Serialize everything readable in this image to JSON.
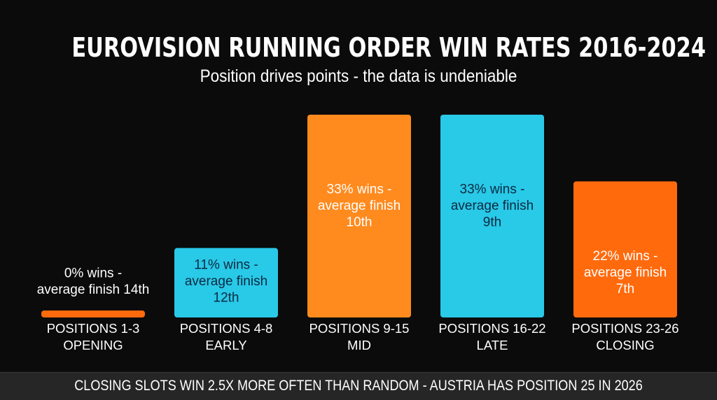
{
  "header": {
    "title": "EUROVISION RUNNING ORDER WIN RATES 2016-2024",
    "subtitle": "Position drives points - the data is undeniable"
  },
  "footer": {
    "text": "CLOSING SLOTS WIN 2.5X MORE OFTEN THAN RANDOM - AUSTRIA HAS POSITION 25 IN 2026"
  },
  "chart_data": {
    "type": "bar",
    "title": "EUROVISION RUNNING ORDER WIN RATES 2016-2024",
    "subtitle": "Position drives points - the data is undeniable",
    "categories": [
      [
        "POSITIONS 1-3",
        "OPENING"
      ],
      [
        "POSITIONS 4-8",
        "EARLY"
      ],
      [
        "POSITIONS 9-15",
        "MID"
      ],
      [
        "POSITIONS 16-22",
        "LATE"
      ],
      [
        "POSITIONS 23-26",
        "CLOSING"
      ]
    ],
    "values": [
      0,
      11,
      33,
      33,
      22
    ],
    "value_unit": "% wins",
    "average_finish": [
      14,
      12,
      10,
      9,
      7
    ],
    "data_labels": [
      [
        "0% wins -",
        "average finish 14th"
      ],
      [
        "11% wins -",
        "average finish",
        "12th"
      ],
      [
        "33% wins -",
        "average finish",
        "10th"
      ],
      [
        "33% wins -",
        "average finish",
        "9th"
      ],
      [
        "22% wins -",
        "average finish",
        "7th"
      ]
    ],
    "colors": [
      "#ff6a0d",
      "#29c9e8",
      "#ff8a1e",
      "#29c9e8",
      "#ff6a0d"
    ],
    "xlabel": "",
    "ylabel": "",
    "grid": false,
    "legend": "none"
  }
}
